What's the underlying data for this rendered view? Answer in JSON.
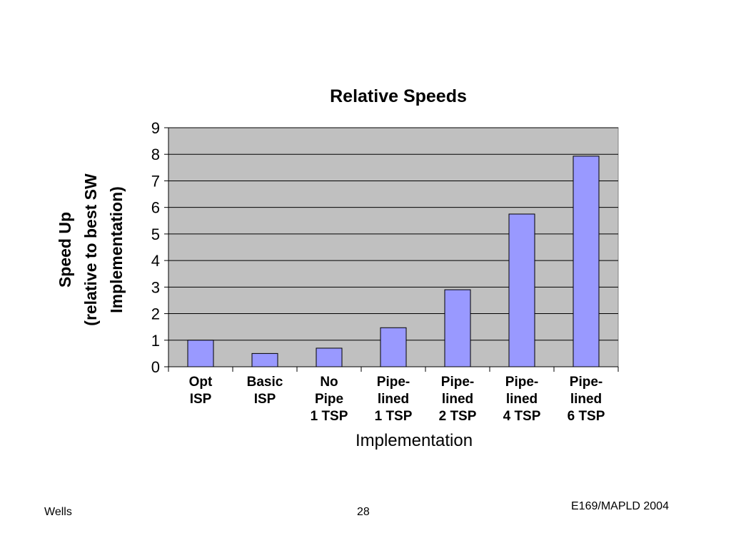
{
  "chart_data": {
    "type": "bar",
    "title": "Relative Speeds",
    "xlabel": "Implementation",
    "ylabel_lines": [
      "Speed Up",
      "(relative to best SW",
      "Implementation)"
    ],
    "categories": [
      [
        "Opt",
        "ISP"
      ],
      [
        "Basic",
        "ISP"
      ],
      [
        "No",
        "Pipe",
        "1 TSP"
      ],
      [
        "Pipe-",
        "lined",
        "1 TSP"
      ],
      [
        "Pipe-",
        "lined",
        "2 TSP"
      ],
      [
        "Pipe-",
        "lined",
        "4 TSP"
      ],
      [
        "Pipe-",
        "lined",
        "6 TSP"
      ]
    ],
    "values": [
      1.0,
      0.5,
      0.7,
      1.47,
      2.9,
      5.75,
      7.93
    ],
    "ylim": [
      0,
      9
    ],
    "yticks": [
      "0",
      "1",
      "2",
      "3",
      "4",
      "5",
      "6",
      "7",
      "8",
      "9"
    ],
    "grid": true,
    "legend": "none",
    "colors": {
      "bar": "#9999ff",
      "bar_border": "#000000",
      "plot_background": "#c0c0c0",
      "gridline": "#000000"
    }
  },
  "footer": {
    "left": "Wells",
    "center": "28",
    "right": "E169/MAPLD 2004"
  }
}
